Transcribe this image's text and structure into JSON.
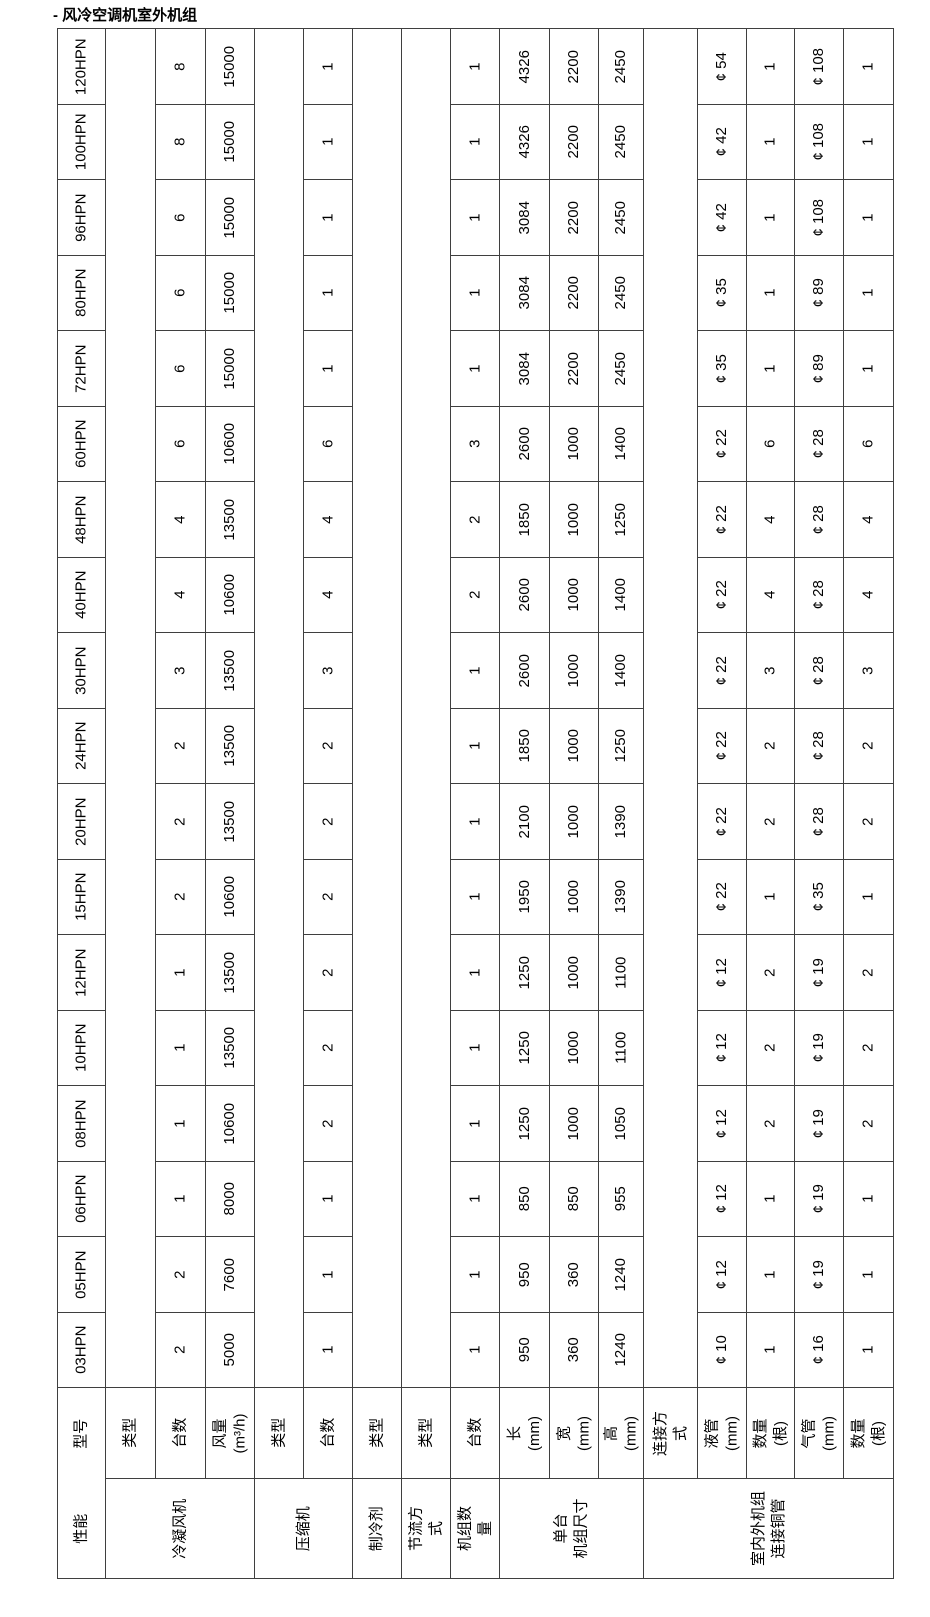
{
  "title": "- 风冷空调机室外机组",
  "table": {
    "corner": {
      "model_label": "型号",
      "performance_label": "性能"
    },
    "attr_headers": [
      "类型",
      "台数",
      "风量(m³/h)",
      "类型",
      "台数",
      "类型",
      "类型",
      "台数",
      "长(mm)",
      "宽(mm)",
      "高(mm)",
      "连接方式",
      "液管(mm)",
      "数量(根)",
      "气管(mm)",
      "数量(根)"
    ],
    "categories": [
      {
        "label": "冷凝风机",
        "span": 3
      },
      {
        "label": "压缩机",
        "span": 2
      },
      {
        "label": "制冷剂",
        "span": 1
      },
      {
        "label": "节流方式",
        "span": 1
      },
      {
        "label": "机组数量",
        "span": 1
      },
      {
        "label": "单台\n机组尺寸",
        "span": 3
      },
      {
        "label": "室内外机组\n连接铜管",
        "span": 5
      }
    ],
    "rows": [
      {
        "model": "120HPN",
        "values": [
          "8",
          "15000",
          "1",
          "1",
          "4326",
          "2200",
          "2450",
          "¢ 54",
          "1",
          "¢ 108",
          "1"
        ]
      },
      {
        "model": "100HPN",
        "values": [
          "8",
          "15000",
          "1",
          "1",
          "4326",
          "2200",
          "2450",
          "¢ 42",
          "1",
          "¢ 108",
          "1"
        ]
      },
      {
        "model": "96HPN",
        "values": [
          "6",
          "15000",
          "1",
          "1",
          "3084",
          "2200",
          "2450",
          "¢ 42",
          "1",
          "¢ 108",
          "1"
        ]
      },
      {
        "model": "80HPN",
        "values": [
          "6",
          "15000",
          "1",
          "1",
          "3084",
          "2200",
          "2450",
          "¢ 35",
          "1",
          "¢ 89",
          "1"
        ]
      },
      {
        "model": "72HPN",
        "values": [
          "6",
          "15000",
          "1",
          "1",
          "3084",
          "2200",
          "2450",
          "¢ 35",
          "1",
          "¢ 89",
          "1"
        ]
      },
      {
        "model": "60HPN",
        "values": [
          "6",
          "10600",
          "6",
          "3",
          "2600",
          "1000",
          "1400",
          "¢ 22",
          "6",
          "¢ 28",
          "6"
        ]
      },
      {
        "model": "48HPN",
        "values": [
          "4",
          "13500",
          "4",
          "2",
          "1850",
          "1000",
          "1250",
          "¢ 22",
          "4",
          "¢ 28",
          "4"
        ]
      },
      {
        "model": "40HPN",
        "values": [
          "4",
          "10600",
          "4",
          "2",
          "2600",
          "1000",
          "1400",
          "¢ 22",
          "4",
          "¢ 28",
          "4"
        ]
      },
      {
        "model": "30HPN",
        "values": [
          "3",
          "13500",
          "3",
          "1",
          "2600",
          "1000",
          "1400",
          "¢ 22",
          "3",
          "¢ 28",
          "3"
        ]
      },
      {
        "model": "24HPN",
        "values": [
          "2",
          "13500",
          "2",
          "1",
          "1850",
          "1000",
          "1250",
          "¢ 22",
          "2",
          "¢ 28",
          "2"
        ]
      },
      {
        "model": "20HPN",
        "values": [
          "2",
          "13500",
          "2",
          "1",
          "2100",
          "1000",
          "1390",
          "¢ 22",
          "2",
          "¢ 28",
          "2"
        ]
      },
      {
        "model": "15HPN",
        "values": [
          "2",
          "10600",
          "2",
          "1",
          "1950",
          "1000",
          "1390",
          "¢ 22",
          "1",
          "¢ 35",
          "1"
        ]
      },
      {
        "model": "12HPN",
        "values": [
          "1",
          "13500",
          "2",
          "1",
          "1250",
          "1000",
          "1100",
          "¢ 12",
          "2",
          "¢ 19",
          "2"
        ]
      },
      {
        "model": "10HPN",
        "values": [
          "1",
          "13500",
          "2",
          "1",
          "1250",
          "1000",
          "1100",
          "¢ 12",
          "2",
          "¢ 19",
          "2"
        ]
      },
      {
        "model": "08HPN",
        "values": [
          "1",
          "10600",
          "2",
          "1",
          "1250",
          "1000",
          "1050",
          "¢ 12",
          "2",
          "¢ 19",
          "2"
        ]
      },
      {
        "model": "06HPN",
        "values": [
          "1",
          "8000",
          "1",
          "1",
          "850",
          "850",
          "955",
          "¢ 12",
          "1",
          "¢ 19",
          "1"
        ]
      },
      {
        "model": "05HPN",
        "values": [
          "2",
          "7600",
          "1",
          "1",
          "950",
          "360",
          "1240",
          "¢ 12",
          "1",
          "¢ 19",
          "1"
        ]
      },
      {
        "model": "03HPN",
        "values": [
          "2",
          "5000",
          "1",
          "1",
          "950",
          "360",
          "1240",
          "¢ 10",
          "1",
          "¢ 16",
          "1"
        ]
      }
    ]
  }
}
